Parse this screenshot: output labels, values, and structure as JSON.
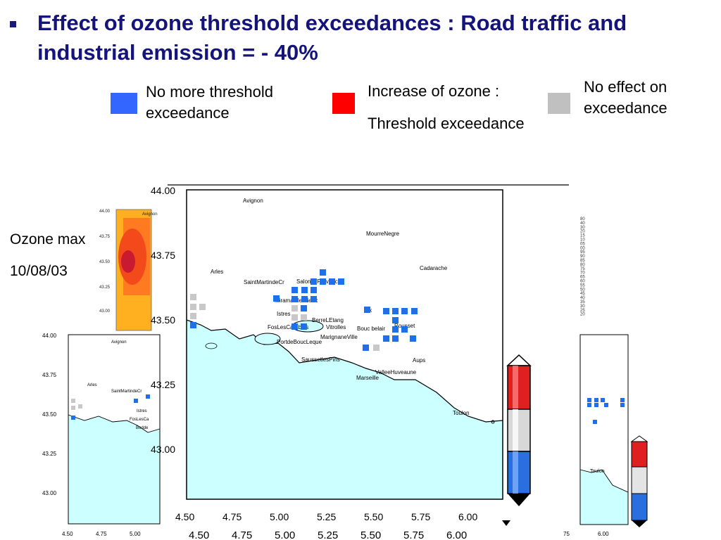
{
  "title": "Effect of ozone threshold exceedances : Road traffic and industrial emission = - 40%",
  "legend": [
    {
      "color": "#3366ff",
      "label_line1": "No more threshold",
      "label_line2": "exceedance"
    },
    {
      "color": "#ff0000",
      "label_line1": "Increase of ozone :",
      "label_line2": "Threshold exceedance"
    },
    {
      "color": "#c0c0c0",
      "label_line1": "No effect on",
      "label_line2": "exceedance"
    }
  ],
  "side_label": {
    "line1": "Ozone max",
    "line2": "10/08/03"
  },
  "map": {
    "lat_ticks": [
      "44.00",
      "43.75",
      "43.50",
      "43.25",
      "43.00"
    ],
    "lon_ticks": [
      "4.50",
      "4.75",
      "5.00",
      "5.25",
      "5.50",
      "5.75",
      "6.00"
    ],
    "lon_ticks_back": [
      "4.50",
      "4.75",
      "5.00",
      "5.25",
      "5.50",
      "5.75",
      "6.00"
    ],
    "places": [
      "Avignon",
      "MourreNegre",
      "Arles",
      "Cadarache",
      "SaintMartindeCr",
      "SalondeProvence",
      "Miramas le Vieux",
      "Aix",
      "Istres",
      "BerreLEtang",
      "Vitrolles",
      "Bouc belair",
      "Rousset",
      "FosLesCarabins",
      "MarignaneVille",
      "PortdeBoucLeque",
      "SaussetlesPins",
      "Aups",
      "ValleeHuveaune",
      "Marseille",
      "Toulon"
    ],
    "colors": {
      "sea": "#ccffff",
      "land": "#ffffff",
      "blue": "#1f6fe8",
      "grey": "#c8c8c8",
      "red": "#e32222"
    }
  },
  "left_map": {
    "lat_ticks": [
      "44.00",
      "43.75",
      "43.50",
      "43.25",
      "43.00"
    ],
    "lon_ticks": [
      "4.50",
      "4.75",
      "5.00"
    ],
    "places": [
      "Avignon",
      "Arles",
      "SaintMartindeCr",
      "Istres",
      "FosLesCa",
      "Bodde"
    ]
  },
  "small_map": {
    "lat_ticks": [
      "44.00",
      "43.75",
      "43.50",
      "43.25",
      "43.00"
    ],
    "place": "Avignon"
  },
  "right_map": {
    "places": [
      "Toulon"
    ],
    "lon_ticks": [
      "75",
      "6.00"
    ]
  },
  "color_scale": [
    "80",
    "40",
    "30",
    "20",
    "15",
    "10",
    "05",
    "00",
    "95",
    "90",
    "85",
    "80",
    "75",
    "70",
    "65",
    "60",
    "55",
    "50",
    "45",
    "40",
    "35",
    "30",
    "25",
    "20"
  ]
}
